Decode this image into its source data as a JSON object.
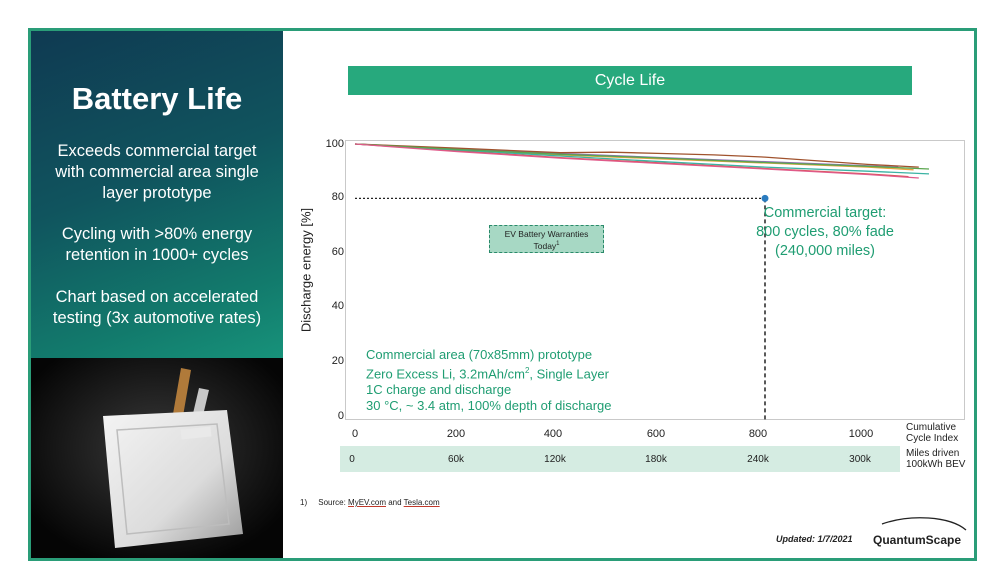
{
  "left": {
    "title": "Battery Life",
    "para1": "Exceeds commercial target with commercial area single layer prototype",
    "para2": "Cycling with >80% energy retention in 1000+ cycles",
    "para3": "Chart based on accelerated testing (3x automotive rates)"
  },
  "banner": "Cycle Life",
  "colors": {
    "accent": "#27a97d",
    "text_green": "#1f9d72",
    "panel_dark": "#0f3a52",
    "band": "#d5ece2"
  },
  "axis": {
    "ylabel": "Discharge energy [%]",
    "xlabel_line1": "Cumulative",
    "xlabel_line2": "Cycle Index",
    "miles_label_line1": "Miles driven",
    "miles_label_line2": "100kWh BEV",
    "yticks": [
      "100",
      "80",
      "60",
      "40",
      "20",
      "0"
    ],
    "xticks": [
      "0",
      "200",
      "400",
      "600",
      "800",
      "1000"
    ],
    "miles_ticks": [
      "0",
      "60k",
      "120k",
      "180k",
      "240k",
      "300k"
    ]
  },
  "annotations": {
    "warranty_line1": "EV Battery Warranties",
    "warranty_line2": "Today",
    "warranty_sup": "1",
    "target_line1": "Commercial target:",
    "target_line2": "800 cycles, 80% fade",
    "target_line3": "(240,000 miles)",
    "proto_line1": "Commercial area (70x85mm) prototype",
    "proto_line2a": "Zero Excess Li, 3.2mAh/cm",
    "proto_line2sup": "2",
    "proto_line2b": ", Single Layer",
    "proto_line3": "1C charge and discharge",
    "proto_line4": "30 °C, ~ 3.4 atm, 100% depth of discharge"
  },
  "footnote": {
    "num": "1)",
    "pre": "Source: ",
    "link1": "MyEV.com",
    "mid": " and ",
    "link2": "Tesla.com"
  },
  "updated": "Updated: 1/7/2021",
  "logo": "QuantumScape",
  "chart_data": {
    "type": "line",
    "xlabel": "Cumulative Cycle Index",
    "ylabel": "Discharge energy [%]",
    "xlim": [
      0,
      1150
    ],
    "ylim": [
      0,
      100
    ],
    "secondary_x": {
      "label": "Miles driven 100kWh BEV",
      "ticks": [
        "0",
        "60k",
        "120k",
        "180k",
        "240k",
        "300k"
      ]
    },
    "target_point": {
      "x": 800,
      "y": 80,
      "label": "Commercial target: 800 cycles, 80% fade (240,000 miles)"
    },
    "series": [
      {
        "color": "#d9534f",
        "x": [
          0,
          200,
          400,
          600,
          800,
          1000,
          1080
        ],
        "y": [
          100,
          97.5,
          95,
          93,
          91,
          89,
          88
        ]
      },
      {
        "color": "#e8a33d",
        "x": [
          0,
          200,
          400,
          600,
          800,
          1000,
          1090
        ],
        "y": [
          100,
          98,
          96,
          94.5,
          93,
          91.5,
          90.5
        ]
      },
      {
        "color": "#3bb3a3",
        "x": [
          0,
          200,
          400,
          600,
          800,
          1000,
          1120
        ],
        "y": [
          100,
          97.8,
          95.6,
          93.5,
          91.5,
          90,
          89
        ]
      },
      {
        "color": "#8e6db5",
        "x": [
          0,
          200,
          400,
          600,
          800,
          1000,
          1060
        ],
        "y": [
          100,
          98.2,
          96.5,
          95,
          93.5,
          92,
          91.5
        ]
      },
      {
        "color": "#a0522d",
        "x": [
          0,
          200,
          400,
          500,
          600,
          700,
          800,
          1000,
          1100
        ],
        "y": [
          100,
          98.5,
          96.8,
          97,
          96.5,
          96,
          95.2,
          92.5,
          91.5
        ]
      },
      {
        "color": "#5aa64f",
        "x": [
          0,
          200,
          400,
          600,
          800,
          1000,
          1120
        ],
        "y": [
          100,
          98,
          96.2,
          94.8,
          93.2,
          91.8,
          90.8
        ]
      },
      {
        "color": "#e05a8a",
        "x": [
          0,
          200,
          400,
          600,
          800,
          1000,
          1100
        ],
        "y": [
          100,
          97.2,
          94.8,
          92.8,
          90.8,
          88.8,
          87.5
        ]
      }
    ]
  }
}
